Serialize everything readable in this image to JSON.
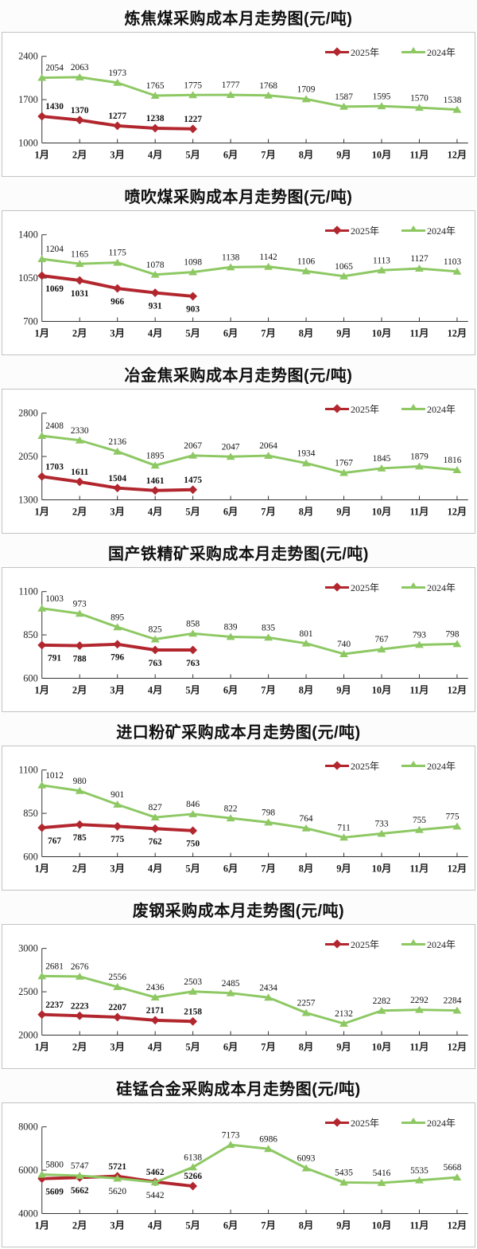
{
  "page": {
    "unit_note": "元/吨",
    "colors": {
      "series_2025": "#b2262e",
      "series_2024": "#8dc863",
      "axis": "#333333",
      "box_border": "#c3c3c3",
      "label_text": "#111111"
    }
  },
  "chart_data": [
    {
      "type": "line",
      "title": "炼焦煤采购成本月走势图(元/吨)",
      "categories": [
        "1月",
        "2月",
        "3月",
        "4月",
        "5月",
        "6月",
        "7月",
        "8月",
        "9月",
        "10月",
        "11月",
        "12月"
      ],
      "yticks": [
        1000,
        1700,
        2400
      ],
      "ylim": [
        1000,
        2400
      ],
      "grid": false,
      "legend_position": "top-right",
      "series": [
        {
          "name": "2025年",
          "color": "#b2262e",
          "marker": "diamond",
          "bold_labels": true,
          "label_side": "above",
          "values": [
            1430,
            1370,
            1277,
            1238,
            1227
          ]
        },
        {
          "name": "2024年",
          "color": "#8dc863",
          "marker": "triangle",
          "bold_labels": false,
          "label_side": "above",
          "values": [
            2054,
            2063,
            1973,
            1765,
            1775,
            1777,
            1768,
            1709,
            1587,
            1595,
            1570,
            1538
          ]
        }
      ]
    },
    {
      "type": "line",
      "title": "喷吹煤采购成本月走势图(元/吨)",
      "categories": [
        "1月",
        "2月",
        "3月",
        "4月",
        "5月",
        "6月",
        "7月",
        "8月",
        "9月",
        "10月",
        "11月",
        "12月"
      ],
      "yticks": [
        700,
        1050,
        1400
      ],
      "ylim": [
        700,
        1400
      ],
      "grid": false,
      "legend_position": "top-right",
      "series": [
        {
          "name": "2025年",
          "color": "#b2262e",
          "marker": "diamond",
          "bold_labels": true,
          "label_side": "below",
          "values": [
            1069,
            1031,
            966,
            931,
            903
          ]
        },
        {
          "name": "2024年",
          "color": "#8dc863",
          "marker": "triangle",
          "bold_labels": false,
          "label_side": "above",
          "values": [
            1204,
            1165,
            1175,
            1078,
            1098,
            1138,
            1142,
            1106,
            1065,
            1113,
            1127,
            1103
          ]
        }
      ]
    },
    {
      "type": "line",
      "title": "冶金焦采购成本月走势图(元/吨)",
      "categories": [
        "1月",
        "2月",
        "3月",
        "4月",
        "5月",
        "6月",
        "7月",
        "8月",
        "9月",
        "10月",
        "11月",
        "12月"
      ],
      "yticks": [
        1300,
        2050,
        2800
      ],
      "ylim": [
        1300,
        2800
      ],
      "grid": false,
      "legend_position": "top-right",
      "series": [
        {
          "name": "2025年",
          "color": "#b2262e",
          "marker": "diamond",
          "bold_labels": true,
          "label_side": "above",
          "values": [
            1703,
            1611,
            1504,
            1461,
            1475
          ]
        },
        {
          "name": "2024年",
          "color": "#8dc863",
          "marker": "triangle",
          "bold_labels": false,
          "label_side": "above",
          "values": [
            2408,
            2330,
            2136,
            1895,
            2067,
            2047,
            2064,
            1934,
            1767,
            1845,
            1879,
            1816
          ]
        }
      ]
    },
    {
      "type": "line",
      "title": "国产铁精矿采购成本月走势图(元/吨)",
      "categories": [
        "1月",
        "2月",
        "3月",
        "4月",
        "5月",
        "6月",
        "7月",
        "8月",
        "9月",
        "10月",
        "11月",
        "12月"
      ],
      "yticks": [
        600,
        850,
        1100
      ],
      "ylim": [
        600,
        1100
      ],
      "grid": false,
      "legend_position": "top-right",
      "series": [
        {
          "name": "2025年",
          "color": "#b2262e",
          "marker": "diamond",
          "bold_labels": true,
          "label_side": "below",
          "values": [
            791,
            788,
            796,
            763,
            763
          ]
        },
        {
          "name": "2024年",
          "color": "#8dc863",
          "marker": "triangle",
          "bold_labels": false,
          "label_side": "above",
          "values": [
            1003,
            973,
            895,
            825,
            858,
            839,
            835,
            801,
            740,
            767,
            793,
            798
          ]
        }
      ]
    },
    {
      "type": "line",
      "title": "进口粉矿采购成本月走势图(元/吨)",
      "categories": [
        "1月",
        "2月",
        "3月",
        "4月",
        "5月",
        "6月",
        "7月",
        "8月",
        "9月",
        "10月",
        "11月",
        "12月"
      ],
      "yticks": [
        600,
        850,
        1100
      ],
      "ylim": [
        600,
        1100
      ],
      "grid": false,
      "legend_position": "top-right",
      "series": [
        {
          "name": "2025年",
          "color": "#b2262e",
          "marker": "diamond",
          "bold_labels": true,
          "label_side": "below",
          "values": [
            767,
            785,
            775,
            762,
            750
          ]
        },
        {
          "name": "2024年",
          "color": "#8dc863",
          "marker": "triangle",
          "bold_labels": false,
          "label_side": "above",
          "values": [
            1012,
            980,
            901,
            827,
            846,
            822,
            798,
            764,
            711,
            733,
            755,
            775
          ]
        }
      ]
    },
    {
      "type": "line",
      "title": "废钢采购成本月走势图(元/吨)",
      "categories": [
        "1月",
        "2月",
        "3月",
        "4月",
        "5月",
        "6月",
        "7月",
        "8月",
        "9月",
        "10月",
        "11月",
        "12月"
      ],
      "yticks": [
        2000,
        2500,
        3000
      ],
      "ylim": [
        2000,
        3000
      ],
      "grid": false,
      "legend_position": "top-right",
      "series": [
        {
          "name": "2025年",
          "color": "#b2262e",
          "marker": "diamond",
          "bold_labels": true,
          "label_side": "above",
          "values": [
            2237,
            2223,
            2207,
            2171,
            2158
          ]
        },
        {
          "name": "2024年",
          "color": "#8dc863",
          "marker": "triangle",
          "bold_labels": false,
          "label_side": "above",
          "values": [
            2681,
            2676,
            2556,
            2436,
            2503,
            2485,
            2434,
            2257,
            2132,
            2282,
            2292,
            2284
          ]
        }
      ]
    },
    {
      "type": "line",
      "title": "硅锰合金采购成本月走势图(元/吨)",
      "categories": [
        "1月",
        "2月",
        "3月",
        "4月",
        "5月",
        "6月",
        "7月",
        "8月",
        "9月",
        "10月",
        "11月",
        "12月"
      ],
      "yticks": [
        4000,
        6000,
        8000
      ],
      "ylim": [
        4000,
        8000
      ],
      "grid": false,
      "legend_position": "top-right",
      "series": [
        {
          "name": "2025年",
          "color": "#b2262e",
          "marker": "diamond",
          "bold_labels": true,
          "label_side": [
            "below",
            "below",
            "above",
            "above",
            "above"
          ],
          "values": [
            5609,
            5662,
            5721,
            5462,
            5266
          ]
        },
        {
          "name": "2024年",
          "color": "#8dc863",
          "marker": "triangle",
          "bold_labels": false,
          "label_side": [
            "above",
            "above",
            "below",
            "below",
            "above",
            "above",
            "above",
            "above",
            "above",
            "above",
            "above",
            "above"
          ],
          "values": [
            5800,
            5747,
            5620,
            5442,
            6138,
            7173,
            6986,
            6093,
            5435,
            5416,
            5535,
            5668
          ]
        }
      ]
    }
  ]
}
